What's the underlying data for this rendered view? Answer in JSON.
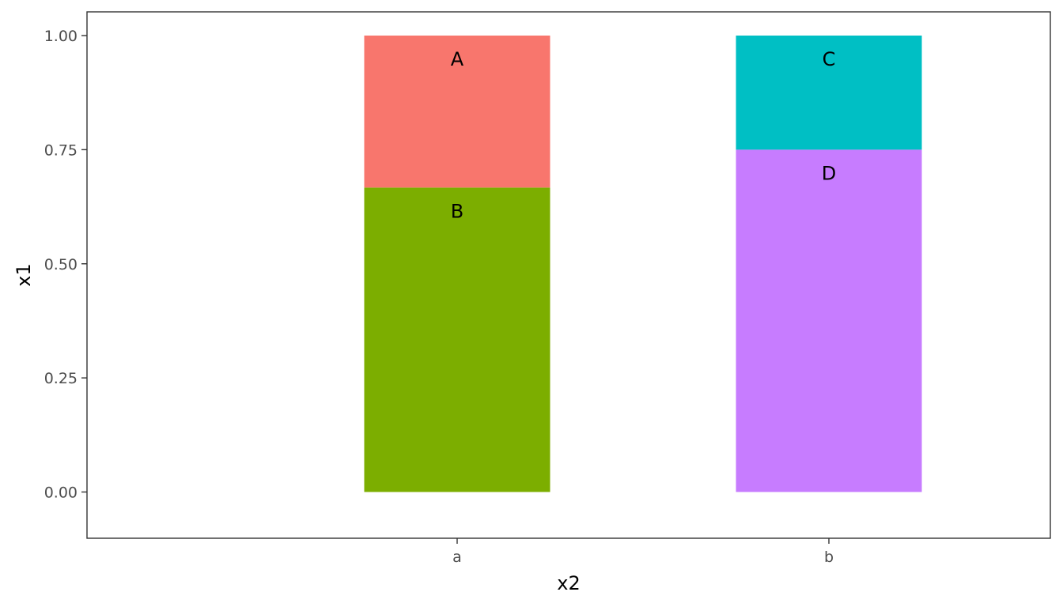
{
  "chart_data": {
    "type": "bar",
    "stacked": true,
    "categories": [
      "a",
      "b"
    ],
    "groups": [
      {
        "category": "a",
        "segments": [
          {
            "label": "B",
            "value": 0.667,
            "color": "#7CAE00"
          },
          {
            "label": "A",
            "value": 0.333,
            "color": "#F8766D"
          }
        ]
      },
      {
        "category": "b",
        "segments": [
          {
            "label": "D",
            "value": 0.75,
            "color": "#C77CFF"
          },
          {
            "label": "C",
            "value": 0.25,
            "color": "#00BFC4"
          }
        ]
      }
    ],
    "xlabel": "x2",
    "ylabel": "x1",
    "ylim": [
      -0.1,
      1.05
    ],
    "yticks": [
      "0.00",
      "0.25",
      "0.50",
      "0.75",
      "1.00"
    ],
    "grid": false,
    "legend": "none"
  }
}
